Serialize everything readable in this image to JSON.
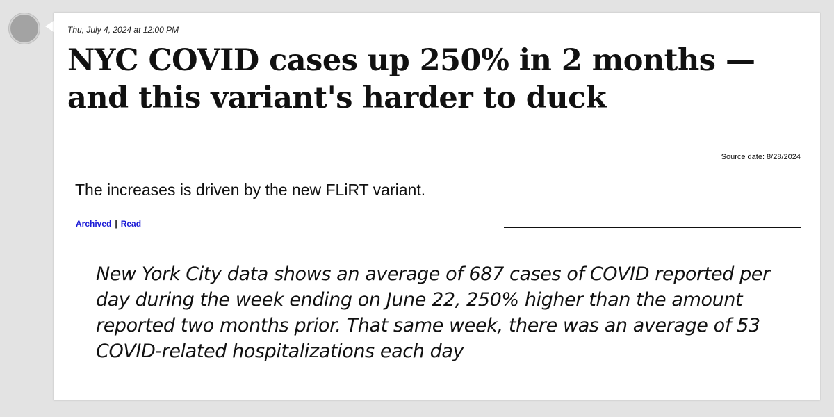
{
  "post": {
    "timestamp": "Thu, July 4, 2024 at 12:00 PM",
    "headline": "NYC COVID cases up 250% in 2 months — and this variant's harder to duck",
    "source_date": "Source date: 8/28/2024",
    "summary": "The increases is driven by the new FLiRT variant.",
    "links": {
      "archived": "Archived",
      "separator": "|",
      "read": "Read"
    },
    "quote": "New York City data shows an average of 687 cases of COVID reported per day during the week ending on June 22, 250% higher than the amount reported two months prior. That same week, there was an average of 53 COVID-related hospitalizations each day"
  },
  "colors": {
    "background": "#e3e3e3",
    "card": "#ffffff",
    "link": "#1a1ad6",
    "avatar": "#a3a3a3"
  },
  "icons": {
    "avatar": "avatar-circle"
  }
}
